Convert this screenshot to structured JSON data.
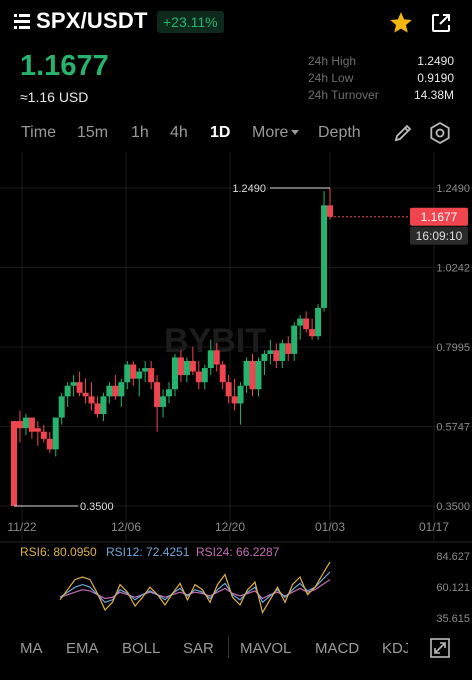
{
  "header": {
    "pair": "SPX/USDT",
    "change": "+23.11%",
    "last_price": "1.1677",
    "usd_price": "≈1.16 USD",
    "stats": [
      {
        "label": "24h High",
        "value": "1.2490"
      },
      {
        "label": "24h Low",
        "value": "0.9190"
      },
      {
        "label": "24h Turnover",
        "value": "14.38M"
      }
    ]
  },
  "timeframes": {
    "time": "Time",
    "m15": "15m",
    "h1": "1h",
    "h4": "4h",
    "d1": "1D",
    "more": "More",
    "depth": "Depth"
  },
  "colors": {
    "up": "#25b36e",
    "down": "#f0454f",
    "bg": "#000000",
    "grid": "#1a1a1a",
    "highlight": "#f0454f"
  },
  "chart_data": {
    "type": "candlestick",
    "watermark": "BYBIT",
    "y_ticks": [
      "1.2490",
      "1.0242",
      "0.7995",
      "0.5747",
      "0.3500"
    ],
    "y_range": [
      0.35,
      1.249
    ],
    "x_ticks": [
      "11/22",
      "12/06",
      "12/20",
      "01/03",
      "01/17"
    ],
    "current_price": "1.1677",
    "countdown": "16:09:10",
    "max_label": "1.2490",
    "min_label": "0.3500",
    "candles": [
      [
        0.59,
        0.59,
        0.35,
        0.35
      ],
      [
        0.59,
        0.62,
        0.53,
        0.57
      ],
      [
        0.57,
        0.61,
        0.55,
        0.6
      ],
      [
        0.6,
        0.6,
        0.54,
        0.56
      ],
      [
        0.57,
        0.59,
        0.52,
        0.56
      ],
      [
        0.56,
        0.58,
        0.53,
        0.54
      ],
      [
        0.54,
        0.56,
        0.5,
        0.51
      ],
      [
        0.51,
        0.6,
        0.49,
        0.6
      ],
      [
        0.6,
        0.67,
        0.58,
        0.66
      ],
      [
        0.66,
        0.7,
        0.63,
        0.69
      ],
      [
        0.69,
        0.72,
        0.66,
        0.7
      ],
      [
        0.7,
        0.73,
        0.66,
        0.67
      ],
      [
        0.67,
        0.71,
        0.64,
        0.66
      ],
      [
        0.66,
        0.7,
        0.62,
        0.64
      ],
      [
        0.64,
        0.66,
        0.6,
        0.61
      ],
      [
        0.61,
        0.67,
        0.59,
        0.66
      ],
      [
        0.66,
        0.7,
        0.64,
        0.69
      ],
      [
        0.69,
        0.72,
        0.65,
        0.66
      ],
      [
        0.66,
        0.71,
        0.63,
        0.7
      ],
      [
        0.7,
        0.76,
        0.68,
        0.75
      ],
      [
        0.75,
        0.76,
        0.69,
        0.71
      ],
      [
        0.71,
        0.74,
        0.66,
        0.73
      ],
      [
        0.73,
        0.76,
        0.7,
        0.74
      ],
      [
        0.74,
        0.76,
        0.68,
        0.7
      ],
      [
        0.7,
        0.72,
        0.56,
        0.63
      ],
      [
        0.63,
        0.68,
        0.6,
        0.66
      ],
      [
        0.66,
        0.7,
        0.64,
        0.68
      ],
      [
        0.68,
        0.78,
        0.66,
        0.77
      ],
      [
        0.77,
        0.79,
        0.7,
        0.72
      ],
      [
        0.72,
        0.77,
        0.7,
        0.76
      ],
      [
        0.76,
        0.8,
        0.72,
        0.73
      ],
      [
        0.73,
        0.76,
        0.68,
        0.7
      ],
      [
        0.7,
        0.75,
        0.68,
        0.74
      ],
      [
        0.74,
        0.82,
        0.72,
        0.79
      ],
      [
        0.79,
        0.81,
        0.73,
        0.75
      ],
      [
        0.75,
        0.76,
        0.68,
        0.7
      ],
      [
        0.7,
        0.72,
        0.64,
        0.66
      ],
      [
        0.66,
        0.71,
        0.62,
        0.64
      ],
      [
        0.64,
        0.7,
        0.58,
        0.69
      ],
      [
        0.69,
        0.77,
        0.67,
        0.76
      ],
      [
        0.76,
        0.78,
        0.66,
        0.68
      ],
      [
        0.68,
        0.77,
        0.66,
        0.76
      ],
      [
        0.76,
        0.79,
        0.72,
        0.78
      ],
      [
        0.78,
        0.82,
        0.75,
        0.79
      ],
      [
        0.79,
        0.81,
        0.74,
        0.76
      ],
      [
        0.76,
        0.82,
        0.74,
        0.81
      ],
      [
        0.81,
        0.83,
        0.76,
        0.78
      ],
      [
        0.78,
        0.87,
        0.76,
        0.86
      ],
      [
        0.86,
        0.89,
        0.82,
        0.88
      ],
      [
        0.88,
        0.9,
        0.84,
        0.85
      ],
      [
        0.85,
        0.88,
        0.82,
        0.83
      ],
      [
        0.83,
        0.92,
        0.82,
        0.91
      ],
      [
        0.91,
        1.24,
        0.9,
        1.2
      ],
      [
        1.2,
        1.249,
        1.16,
        1.1677
      ]
    ],
    "rsi": {
      "labels": [
        {
          "name": "RSI6",
          "value": "80.0950",
          "color": "#e0b04a"
        },
        {
          "name": "RSI12",
          "value": "72.4251",
          "color": "#6ea6d8"
        },
        {
          "name": "RSI24",
          "value": "66.2287",
          "color": "#c76bb5"
        }
      ],
      "y_ticks": [
        "84.627",
        "60.121",
        "35.615"
      ],
      "y_range": [
        35.615,
        84.627
      ],
      "rsi6": [
        50,
        58,
        66,
        68,
        66,
        55,
        42,
        48,
        62,
        56,
        45,
        52,
        60,
        54,
        46,
        55,
        63,
        50,
        62,
        58,
        48,
        62,
        70,
        52,
        46,
        58,
        64,
        40,
        50,
        60,
        48,
        62,
        68,
        54,
        60,
        70,
        80
      ],
      "rsi12": [
        52,
        56,
        60,
        62,
        60,
        54,
        48,
        50,
        58,
        55,
        50,
        54,
        57,
        54,
        50,
        55,
        59,
        53,
        58,
        56,
        51,
        58,
        63,
        54,
        50,
        56,
        60,
        48,
        53,
        58,
        52,
        58,
        63,
        57,
        60,
        66,
        72
      ],
      "rsi24": [
        52,
        54,
        56,
        58,
        57,
        54,
        51,
        52,
        56,
        54,
        52,
        54,
        56,
        54,
        52,
        54,
        56,
        54,
        56,
        55,
        53,
        56,
        59,
        55,
        53,
        55,
        57,
        51,
        54,
        56,
        53,
        56,
        59,
        56,
        58,
        62,
        66
      ]
    }
  },
  "indicators": [
    "MA",
    "EMA",
    "BOLL",
    "SAR",
    "MAVOL",
    "MACD",
    "KDJ"
  ]
}
